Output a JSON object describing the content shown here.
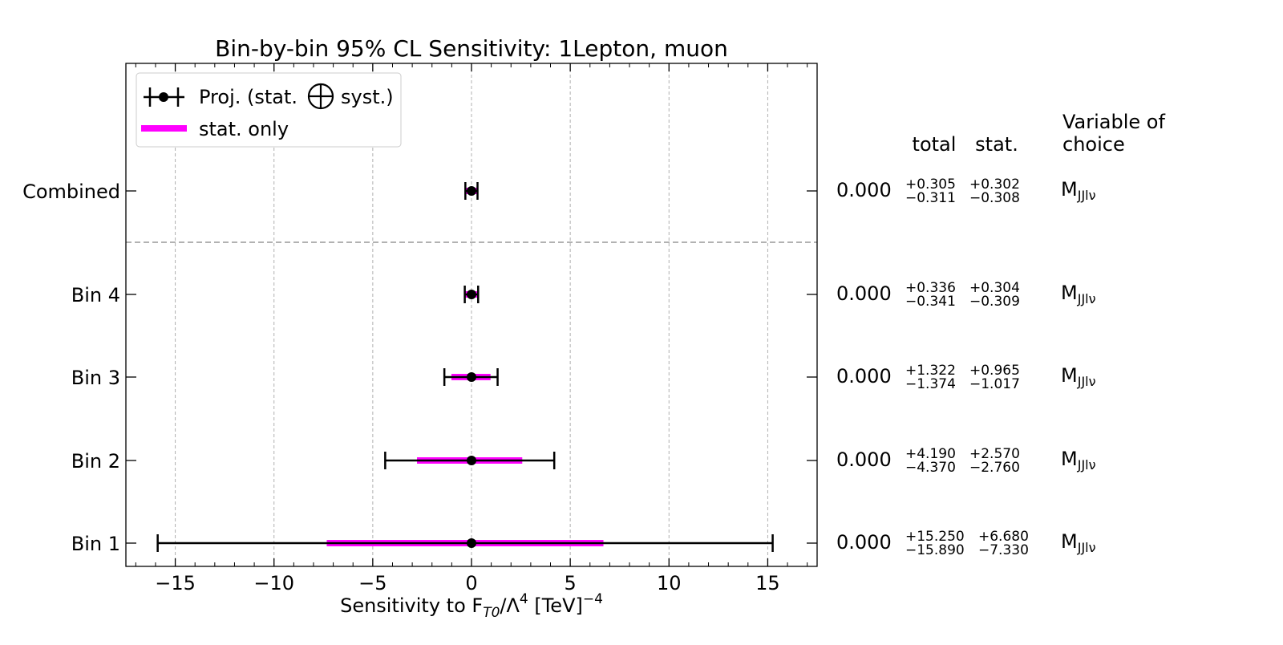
{
  "chart_data": {
    "type": "errorbar",
    "title": "Bin-by-bin 95% CL Sensitivity: 1Lepton, muon",
    "xlabel": {
      "prefix": "Sensitivity to F",
      "sub": "T0",
      "mid": "/Λ",
      "sup": "4",
      "unit": " [TeV]",
      "unit_sup": "−4"
    },
    "xlim": [
      -17.5,
      17.5
    ],
    "xticks": [
      -15,
      -10,
      -5,
      0,
      5,
      10,
      15
    ],
    "xtick_labels": [
      "−15",
      "−10",
      "−5",
      "0",
      "5",
      "10",
      "15"
    ],
    "grid": "vertical dashed",
    "legend": {
      "placement": "top-left",
      "entries": [
        {
          "label_pre": "Proj. (stat.",
          "label_post": "syst.)",
          "style": "errorbar",
          "color": "#000000"
        },
        {
          "label": "stat. only",
          "style": "band",
          "color": "#ff00ff"
        }
      ]
    },
    "columns": {
      "total": "total",
      "stat": "stat.",
      "variable_line1": "Variable of",
      "variable_line2": "choice"
    },
    "rows": [
      {
        "label": "Combined",
        "value": 0.0,
        "value_text": "0.000",
        "total_up": 0.305,
        "total_down": 0.311,
        "stat_up": 0.302,
        "stat_down": 0.308,
        "total_up_text": "+0.305",
        "total_down_text": "−0.311",
        "stat_up_text": "+0.302",
        "stat_down_text": "−0.308",
        "variable": "M",
        "variable_sub": "JJlν"
      },
      {
        "label": "Bin 4",
        "value": 0.0,
        "value_text": "0.000",
        "total_up": 0.336,
        "total_down": 0.341,
        "stat_up": 0.304,
        "stat_down": 0.309,
        "total_up_text": "+0.336",
        "total_down_text": "−0.341",
        "stat_up_text": "+0.304",
        "stat_down_text": "−0.309",
        "variable": "M",
        "variable_sub": "JJlν"
      },
      {
        "label": "Bin 3",
        "value": 0.0,
        "value_text": "0.000",
        "total_up": 1.322,
        "total_down": 1.374,
        "stat_up": 0.965,
        "stat_down": 1.017,
        "total_up_text": "+1.322",
        "total_down_text": "−1.374",
        "stat_up_text": "+0.965",
        "stat_down_text": "−1.017",
        "variable": "M",
        "variable_sub": "JJlν"
      },
      {
        "label": "Bin 2",
        "value": 0.0,
        "value_text": "0.000",
        "total_up": 4.19,
        "total_down": 4.37,
        "stat_up": 2.57,
        "stat_down": 2.76,
        "total_up_text": "+4.190",
        "total_down_text": "−4.370",
        "stat_up_text": "+2.570",
        "stat_down_text": "−2.760",
        "variable": "M",
        "variable_sub": "JJlν"
      },
      {
        "label": "Bin 1",
        "value": 0.0,
        "value_text": "0.000",
        "total_up": 15.25,
        "total_down": 15.89,
        "stat_up": 6.68,
        "stat_down": 7.33,
        "total_up_text": "+15.250",
        "total_down_text": "−15.890",
        "stat_up_text": "+6.680",
        "stat_down_text": "−7.330",
        "variable": "M",
        "variable_sub": "JJlν"
      }
    ],
    "separator": "dashed line between Combined and Bin 4",
    "colors": {
      "total": "#000000",
      "stat": "#ff00ff",
      "grid": "#b0b0b0",
      "separator": "#999999"
    }
  }
}
